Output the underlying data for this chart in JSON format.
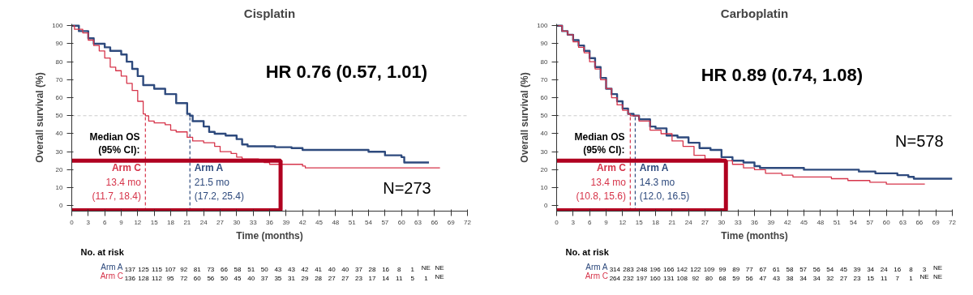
{
  "chart_data": [
    {
      "type": "step",
      "title": "Cisplatin",
      "xlabel": "Time (months)",
      "ylabel": "Overall survival (%)",
      "xlim": [
        0,
        72
      ],
      "ylim": [
        -3,
        101
      ],
      "xticks": [
        0,
        3,
        6,
        9,
        12,
        15,
        18,
        21,
        24,
        27,
        30,
        33,
        36,
        39,
        42,
        45,
        48,
        51,
        54,
        57,
        60,
        63,
        66,
        69,
        72
      ],
      "yticks": [
        0,
        10,
        20,
        30,
        40,
        50,
        60,
        70,
        80,
        90,
        100
      ],
      "series": [
        {
          "name": "Arm A",
          "color": "#2e4a7d",
          "x": [
            0,
            1.3,
            3,
            4,
            6,
            7,
            9,
            10,
            11,
            12,
            13,
            15,
            17,
            19,
            21,
            21.5,
            22,
            24,
            25,
            26,
            28,
            30,
            31,
            32,
            36,
            37,
            40,
            42,
            50,
            54,
            57,
            60,
            60.5,
            65
          ],
          "values": [
            100,
            97,
            93,
            90,
            88,
            86,
            84,
            80,
            76,
            72,
            67,
            65,
            62,
            57,
            51,
            50,
            47,
            44,
            41,
            40,
            39,
            37,
            34,
            33,
            33,
            32.5,
            32,
            31,
            31,
            30,
            28,
            27,
            24,
            24
          ]
        },
        {
          "name": "Arm C",
          "color": "#d6344a",
          "x": [
            0,
            0.5,
            2,
            3,
            4,
            5,
            6,
            7,
            8,
            9,
            10,
            11,
            12,
            13,
            13.4,
            14,
            15,
            17,
            18,
            19,
            21,
            22,
            24,
            26,
            27,
            29,
            30,
            31,
            34,
            35,
            36,
            38,
            42,
            42.5,
            67
          ],
          "values": [
            100,
            98,
            96,
            92,
            89,
            86,
            82,
            77,
            75,
            72,
            68,
            64,
            58,
            51,
            50,
            47,
            46,
            45,
            42,
            41,
            38,
            36,
            35,
            33,
            30,
            29,
            27,
            26,
            25,
            24,
            23,
            23,
            22,
            21,
            21
          ]
        }
      ],
      "ref_lines": [
        {
          "axis": "y",
          "value": 50,
          "color": "#cccccc",
          "line_style": "dashed"
        },
        {
          "axis": "x",
          "value": 13.4,
          "color": "#d6344a",
          "line_style": "dashed"
        },
        {
          "axis": "x",
          "value": 21.5,
          "color": "#2e4a7d",
          "line_style": "dashed"
        }
      ],
      "annotations": [
        "HR 0.76 (0.57, 1.01)",
        "N=273",
        "Median OS",
        "(95% CI):",
        "13.4 mo",
        "(11.7, 18.4)",
        "21.5 mo",
        "(17.2, 25.4)",
        "No. at risk",
        "137 125 115 107 92 81 73 66 58 51 50 43 43 42 41 40 40 37 28 16 8 1 NE NE",
        "136 128 112 95 72 60 56 50 45 40 37 35 31 29 28 27 27 23 17 14 11 5 1 NE"
      ]
    },
    {
      "type": "step",
      "title": "Carboplatin",
      "xlabel": "Time (months)",
      "ylabel": "Overall survival (%)",
      "xlim": [
        0,
        72
      ],
      "ylim": [
        -3,
        101
      ],
      "xticks": [
        0,
        3,
        6,
        9,
        12,
        15,
        18,
        21,
        24,
        27,
        30,
        33,
        36,
        39,
        42,
        45,
        48,
        51,
        54,
        57,
        60,
        63,
        66,
        69,
        72
      ],
      "yticks": [
        0,
        10,
        20,
        30,
        40,
        50,
        60,
        70,
        80,
        90,
        100
      ],
      "series": [
        {
          "name": "Arm A",
          "color": "#2e4a7d",
          "x": [
            0,
            1,
            2,
            3,
            4,
            5,
            6,
            7,
            8,
            9,
            10,
            11,
            12,
            13,
            14,
            14.3,
            15,
            17,
            18,
            20,
            22,
            24,
            26,
            28,
            30,
            32,
            34,
            36,
            37,
            40,
            45,
            50,
            55,
            58,
            62,
            64,
            65,
            72
          ],
          "values": [
            100,
            97,
            95,
            92,
            89,
            86,
            82,
            77,
            71,
            65,
            62,
            58,
            54,
            51,
            50,
            50,
            48,
            44,
            43,
            39,
            38,
            35,
            32,
            31,
            27,
            25,
            24,
            22,
            21,
            21,
            20,
            20,
            19,
            18,
            17,
            16,
            15,
            15
          ]
        },
        {
          "name": "Arm C",
          "color": "#d6344a",
          "x": [
            0,
            1,
            2,
            3,
            4,
            5,
            6,
            7,
            8,
            9,
            10,
            11,
            12,
            13,
            13.4,
            15,
            17,
            19,
            21,
            23,
            25,
            27,
            30,
            32,
            34,
            36,
            38,
            41,
            43,
            50,
            53,
            57,
            60,
            67
          ],
          "values": [
            100,
            97,
            95,
            91,
            88,
            85,
            80,
            76,
            70,
            65,
            60,
            56,
            53,
            51,
            50,
            47,
            42,
            40,
            36,
            33,
            28,
            26,
            25,
            23,
            21,
            20,
            18,
            17,
            16,
            15,
            14,
            13,
            12,
            12
          ]
        }
      ],
      "ref_lines": [
        {
          "axis": "y",
          "value": 50,
          "color": "#cccccc",
          "line_style": "dashed"
        },
        {
          "axis": "x",
          "value": 13.4,
          "color": "#d6344a",
          "line_style": "dashed"
        },
        {
          "axis": "x",
          "value": 14.3,
          "color": "#2e4a7d",
          "line_style": "dashed"
        }
      ],
      "annotations": [
        "HR 0.89 (0.74, 1.08)",
        "N=578",
        "Median OS",
        "(95% CI):",
        "13.4 mo",
        "(10.8, 15.6)",
        "14.3 mo",
        "(12.0, 16.5)",
        "No. at risk",
        "314 283 248 196 166 142 122 109 99 89 77 67 61 58 57 56 54 45 39 34 24 16 8 3 NE",
        "264 232 197 160 131 108 92 80 68 59 56 47 43 38 34 34 32 27 23 15 11 7 1 NE NE"
      ]
    }
  ]
}
